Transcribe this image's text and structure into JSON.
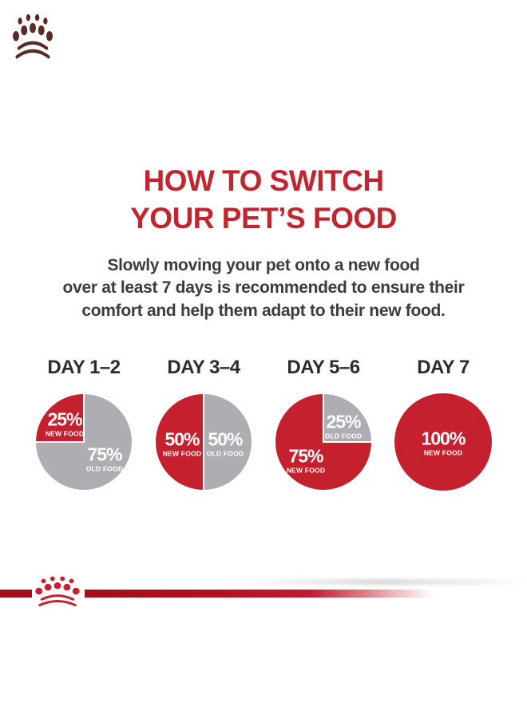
{
  "header": {
    "logo_icon": "royal-canin-crown",
    "title_line1": "HOW TO SWITCH",
    "title_line2": "YOUR PET’S FOOD",
    "intro_lines": [
      "Slowly moving your pet onto a new food",
      "over at least 7 days is recommended to ensure their",
      "comfort and help them adapt to their new food."
    ]
  },
  "colors": {
    "title_red": "#c22430",
    "pie_red": "#c5202e",
    "pie_gray": "#adaeb2",
    "heading_dark": "#2b2b30",
    "body_text": "#3c3c3e",
    "logo_dark": "#5a2b26",
    "line_red": "#a30d1c",
    "slice_label_white": "#ffffff"
  },
  "chart_data": [
    {
      "type": "pie",
      "title": "DAY 1–2",
      "legend_position": "inside",
      "slices": [
        {
          "name": "NEW FOOD",
          "label": "25%",
          "value": 25,
          "color": "#c5202e"
        },
        {
          "name": "OLD FOOD",
          "label": "75%",
          "value": 75,
          "color": "#adaeb2"
        }
      ]
    },
    {
      "type": "pie",
      "title": "DAY 3–4",
      "legend_position": "inside",
      "slices": [
        {
          "name": "NEW FOOD",
          "label": "50%",
          "value": 50,
          "color": "#c5202e"
        },
        {
          "name": "OLD FOOD",
          "label": "50%",
          "value": 50,
          "color": "#adaeb2"
        }
      ]
    },
    {
      "type": "pie",
      "title": "DAY 5–6",
      "legend_position": "inside",
      "slices": [
        {
          "name": "NEW FOOD",
          "label": "75%",
          "value": 75,
          "color": "#c5202e"
        },
        {
          "name": "OLD FOOD",
          "label": "25%",
          "value": 25,
          "color": "#adaeb2"
        }
      ]
    },
    {
      "type": "pie",
      "title": "DAY 7",
      "legend_position": "inside",
      "slices": [
        {
          "name": "NEW FOOD",
          "label": "100%",
          "value": 100,
          "color": "#c5202e"
        }
      ]
    }
  ],
  "footer": {
    "logo_icon": "royal-canin-crown"
  }
}
